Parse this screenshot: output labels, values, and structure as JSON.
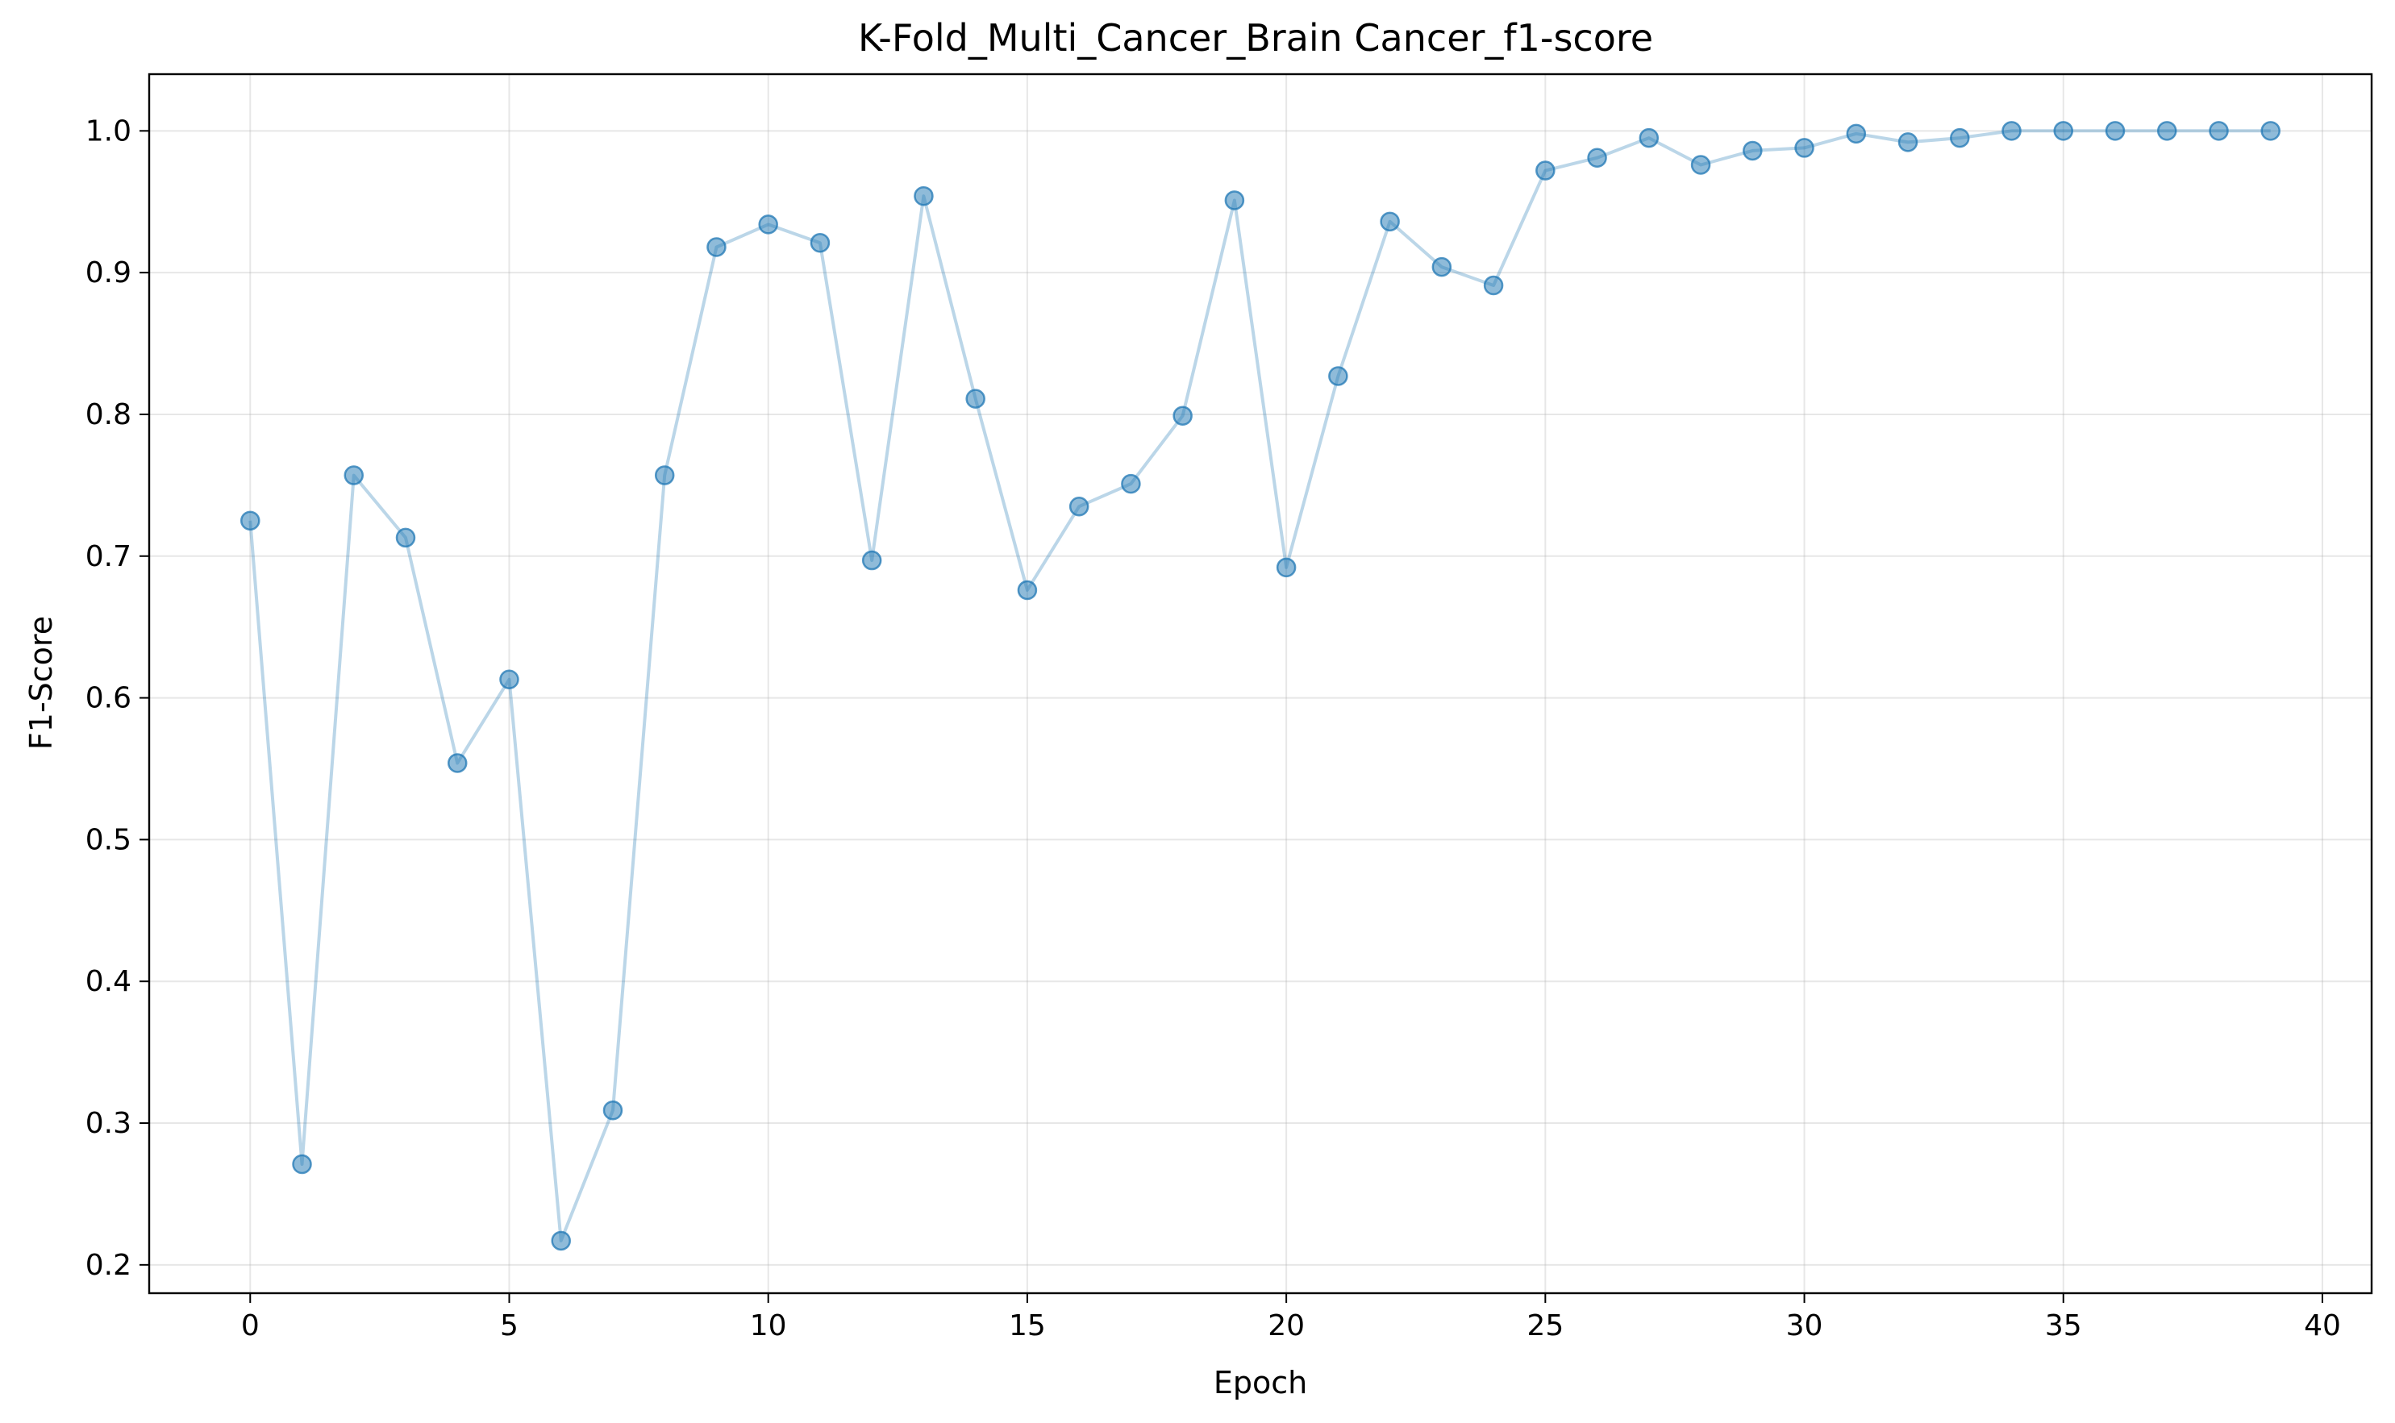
{
  "chart_data": {
    "type": "line",
    "title": "K-Fold_Multi_Cancer_Brain Cancer_f1-score",
    "xlabel": "Epoch",
    "ylabel": "F1-Score",
    "xlim": [
      -1.95,
      40.95
    ],
    "ylim": [
      0.18,
      1.04
    ],
    "xticks": [
      0,
      5,
      10,
      15,
      20,
      25,
      30,
      35,
      40
    ],
    "yticks": [
      0.2,
      0.3,
      0.4,
      0.5,
      0.6,
      0.7,
      0.8,
      0.9,
      1.0
    ],
    "grid": true,
    "marker": "circle",
    "color": "#1f77b4",
    "series": [
      {
        "x": [
          0,
          1,
          2,
          3,
          4,
          5,
          6,
          7,
          8,
          9,
          10,
          11,
          12,
          13,
          14,
          15,
          16,
          17,
          18,
          19,
          20,
          21,
          22,
          23,
          24,
          25,
          26,
          27,
          28,
          29,
          30,
          31,
          32,
          33,
          34,
          35,
          36,
          37,
          38,
          39
        ],
        "values": [
          0.725,
          0.271,
          0.757,
          0.713,
          0.554,
          0.613,
          0.217,
          0.309,
          0.757,
          0.918,
          0.934,
          0.921,
          0.697,
          0.954,
          0.811,
          0.676,
          0.735,
          0.751,
          0.799,
          0.951,
          0.692,
          0.827,
          0.936,
          0.904,
          0.891,
          0.972,
          0.981,
          0.995,
          0.976,
          0.986,
          0.988,
          0.998,
          0.992,
          0.995,
          1.0,
          1.0,
          1.0,
          1.0,
          1.0,
          1.0
        ]
      }
    ]
  }
}
